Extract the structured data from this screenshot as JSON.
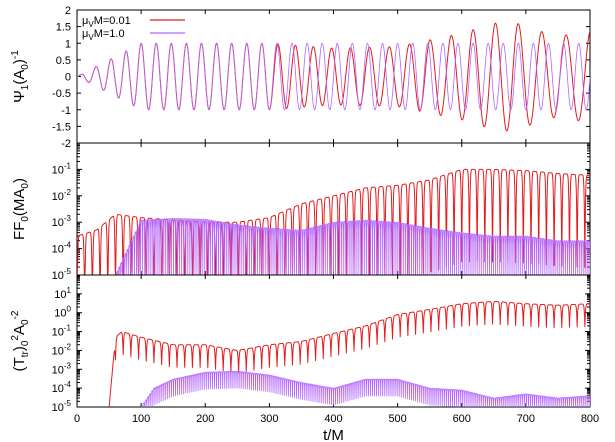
{
  "chart_data": [
    {
      "type": "line",
      "ylabel": "Ψ1(A0)-1",
      "ylabel_parts": {
        "main": "Ψ",
        "sub": "1",
        "mid": "(A",
        "sub2": "0",
        "close": ")",
        "sup": "-1"
      },
      "xlim": [
        0,
        800
      ],
      "ylim": [
        -2,
        2
      ],
      "yscale": "linear",
      "yticks": [
        "-2",
        "-1.5",
        "-1",
        "-0.5",
        "0",
        "0.5",
        "1",
        "1.5",
        "2"
      ],
      "legend": "top-left",
      "series": [
        {
          "name": "μVM=0.01",
          "color": "#e41a1c",
          "description_points": [
            [
              0,
              0
            ],
            [
              100,
              1.0
            ],
            [
              200,
              1.0
            ],
            [
              300,
              1.0
            ],
            [
              400,
              0.85
            ],
            [
              500,
              0.9
            ],
            [
              600,
              1.3
            ],
            [
              650,
              1.6
            ],
            [
              680,
              1.65
            ],
            [
              700,
              1.5
            ],
            [
              750,
              1.2
            ],
            [
              800,
              1.4
            ]
          ]
        },
        {
          "name": "μVM=1.0",
          "color": "#b266ff",
          "description_points": [
            [
              0,
              0
            ],
            [
              100,
              1.0
            ],
            [
              200,
              1.0
            ],
            [
              300,
              1.0
            ],
            [
              400,
              1.0
            ],
            [
              500,
              1.0
            ],
            [
              600,
              1.0
            ],
            [
              700,
              1.0
            ],
            [
              800,
              1.0
            ]
          ]
        }
      ]
    },
    {
      "type": "line",
      "ylabel": "FF0(MA0)",
      "ylabel_parts": {
        "main": "FF",
        "sub": "0",
        "mid": "(MA",
        "sub2": "0",
        "close": ")"
      },
      "xlim": [
        0,
        800
      ],
      "ylim": [
        1e-05,
        1
      ],
      "yscale": "log",
      "yticks": [
        "10-5",
        "10-4",
        "10-3",
        "10-2",
        "10-1"
      ],
      "yticks_display": [
        {
          "base": "10",
          "exp": "-5"
        },
        {
          "base": "10",
          "exp": "-4"
        },
        {
          "base": "10",
          "exp": "-3"
        },
        {
          "base": "10",
          "exp": "-2"
        },
        {
          "base": "10",
          "exp": "-1"
        }
      ],
      "series": [
        {
          "name": "μVM=0.01",
          "color": "#e41a1c",
          "envelope_x": [
            0,
            30,
            60,
            100,
            150,
            200,
            250,
            300,
            350,
            400,
            450,
            500,
            550,
            600,
            650,
            700,
            750,
            800
          ],
          "envelope_y": [
            0.0003,
            0.0005,
            0.002,
            0.0015,
            0.0012,
            0.001,
            0.001,
            0.0015,
            0.005,
            0.01,
            0.02,
            0.025,
            0.04,
            0.1,
            0.1,
            0.09,
            0.07,
            0.06
          ]
        },
        {
          "name": "μVM=1.0",
          "color": "#b266ff",
          "envelope_x": [
            0,
            60,
            100,
            150,
            200,
            250,
            300,
            350,
            400,
            450,
            500,
            550,
            600,
            650,
            700,
            750,
            800
          ],
          "envelope_y": [
            1e-05,
            1e-05,
            0.0012,
            0.0014,
            0.0013,
            0.0008,
            0.0006,
            0.0005,
            0.001,
            0.0012,
            0.001,
            0.0006,
            0.0004,
            0.0003,
            0.0003,
            0.0002,
            0.0002
          ]
        }
      ]
    },
    {
      "type": "line",
      "ylabel": "(Ttr)0^2 A0^-2",
      "ylabel_parts": {
        "open": "(T",
        "sub": "tr",
        "close": ")",
        "sub2": "0",
        "sup": "2",
        "mid": "A",
        "sub3": "0",
        "sup2": "-2"
      },
      "xlabel": "t/M",
      "xlim": [
        0,
        800
      ],
      "ylim": [
        1e-05,
        100
      ],
      "yscale": "log",
      "xticks": [
        "0",
        "100",
        "200",
        "300",
        "400",
        "500",
        "600",
        "700",
        "800"
      ],
      "yticks": [
        "10-5",
        "10-4",
        "10-3",
        "10-2",
        "10-1",
        "100",
        "101"
      ],
      "yticks_display": [
        {
          "base": "10",
          "exp": "-5"
        },
        {
          "base": "10",
          "exp": "-4"
        },
        {
          "base": "10",
          "exp": "-3"
        },
        {
          "base": "10",
          "exp": "-2"
        },
        {
          "base": "10",
          "exp": "-1"
        },
        {
          "base": "10",
          "exp": "0"
        },
        {
          "base": "10",
          "exp": "1"
        }
      ],
      "series": [
        {
          "name": "μVM=0.01",
          "color": "#e41a1c",
          "envelope_x": [
            50,
            60,
            70,
            100,
            150,
            200,
            250,
            300,
            350,
            400,
            450,
            500,
            550,
            600,
            650,
            700,
            750,
            800
          ],
          "envelope_y": [
            1e-05,
            0.05,
            0.1,
            0.05,
            0.02,
            0.02,
            0.01,
            0.02,
            0.03,
            0.08,
            0.2,
            0.8,
            1.5,
            3,
            4,
            3,
            2.5,
            3
          ]
        },
        {
          "name": "μVM=1.0",
          "color": "#b266ff",
          "envelope_x": [
            100,
            120,
            150,
            200,
            250,
            300,
            350,
            400,
            450,
            500,
            550,
            600,
            650,
            700,
            750,
            800
          ],
          "envelope_y": [
            1e-05,
            0.0001,
            0.0003,
            0.0007,
            0.0008,
            0.0005,
            0.0002,
            0.0001,
            0.0003,
            0.0003,
            0.0001,
            8e-05,
            3e-05,
            5e-05,
            3e-05,
            4e-05
          ]
        }
      ]
    }
  ]
}
